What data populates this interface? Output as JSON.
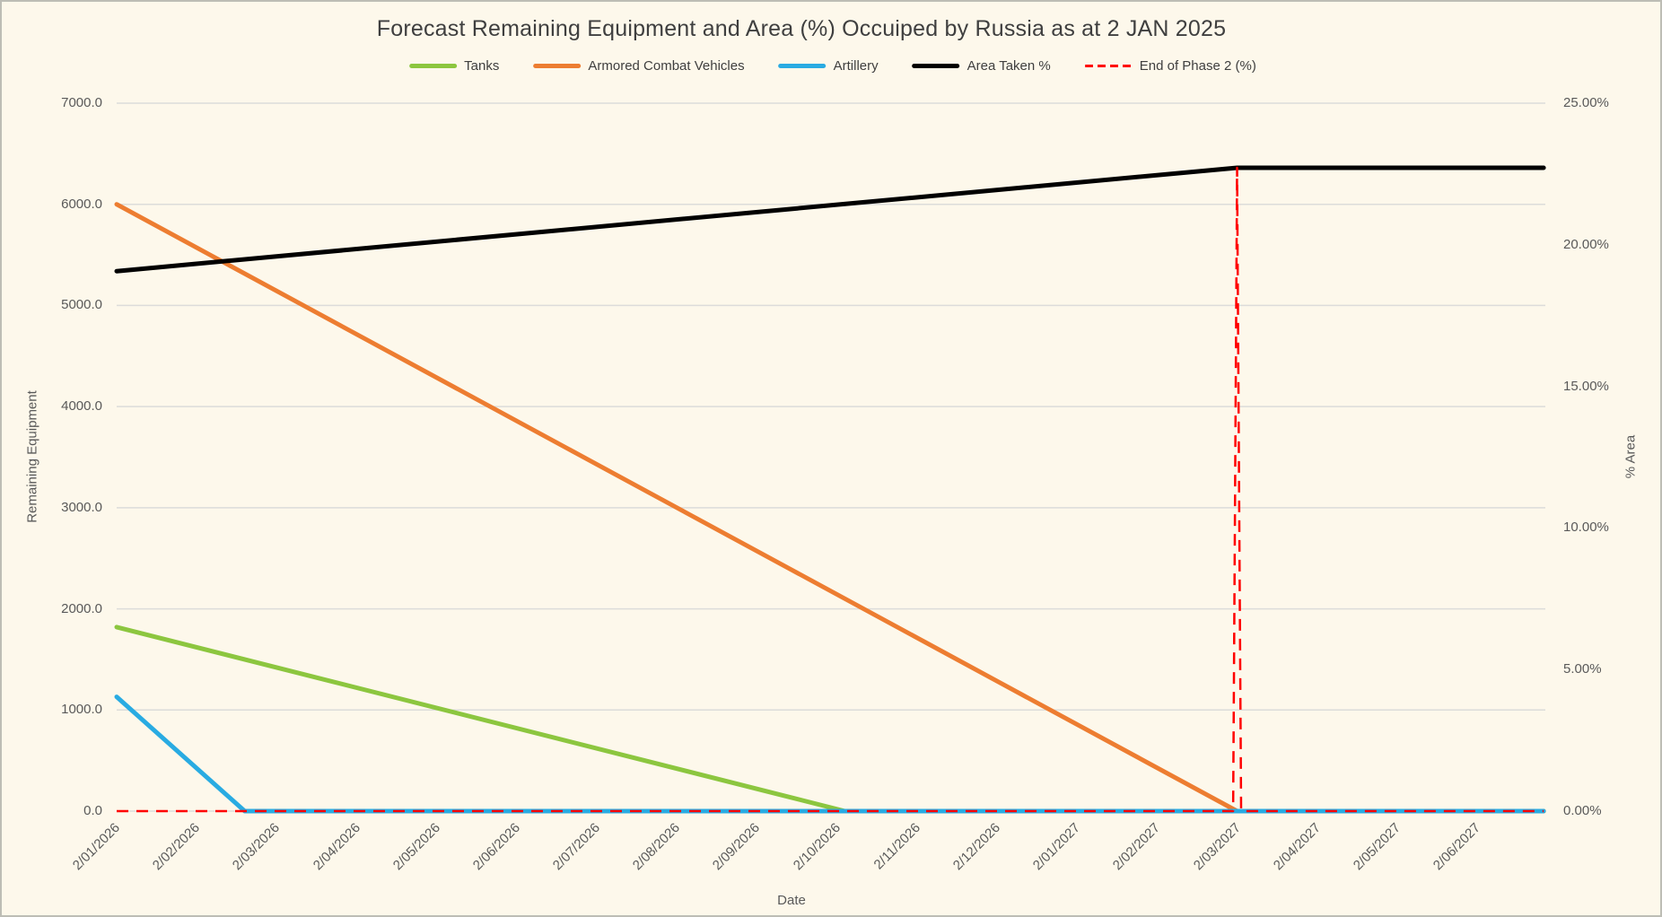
{
  "title": "Forecast Remaining Equipment and Area (%) Occuiped by Russia as at 2 JAN 2025",
  "x_axis_title": "Date",
  "left_axis_title": "Remaining Equipment",
  "right_axis_title": "% Area",
  "colors": {
    "background": "#FDF8EB",
    "gridline": "#DCDCDA",
    "tick_text": "#595959",
    "title_text": "#3F3F3F",
    "tanks": "#8CC63F",
    "armored_combat_vehicles": "#ED7D31",
    "artillery": "#29ABE2",
    "area_taken": "#000000",
    "end_of_phase_2": "#FF0000"
  },
  "legend": {
    "position": "top-center",
    "items": [
      {
        "label": "Tanks",
        "color": "#8CC63F",
        "dashed": false
      },
      {
        "label": "Armored Combat Vehicles",
        "color": "#ED7D31",
        "dashed": false
      },
      {
        "label": "Artillery",
        "color": "#29ABE2",
        "dashed": false
      },
      {
        "label": "Area Taken %",
        "color": "#000000",
        "dashed": false
      },
      {
        "label": "End of Phase 2 (%)",
        "color": "#FF0000",
        "dashed": true
      }
    ]
  },
  "chart_data": {
    "type": "line",
    "title": "Forecast Remaining Equipment and Area (%) Occuiped by Russia as at 2 JAN 2025",
    "xlabel": "Date",
    "grid": true,
    "legend_position": "top",
    "x_axis": {
      "categories": [
        "2/01/2026",
        "2/02/2026",
        "2/03/2026",
        "2/04/2026",
        "2/05/2026",
        "2/06/2026",
        "2/07/2026",
        "2/08/2026",
        "2/09/2026",
        "2/10/2026",
        "2/11/2026",
        "2/12/2026",
        "2/01/2027",
        "2/02/2027",
        "2/03/2027",
        "2/04/2027",
        "2/05/2027",
        "2/06/2027"
      ],
      "plot_extends_past_last_label_by_index": 0.83
    },
    "left_axis": {
      "label": "Remaining Equipment",
      "min": 0,
      "max": 7000,
      "tick_step": 1000,
      "tick_values": [
        0,
        1000,
        2000,
        3000,
        4000,
        5000,
        6000,
        7000
      ],
      "tick_labels": [
        "0.0",
        "1000.0",
        "2000.0",
        "3000.0",
        "4000.0",
        "5000.0",
        "6000.0",
        "7000.0"
      ]
    },
    "right_axis": {
      "label": "% Area",
      "min": 0,
      "max": 25,
      "tick_step": 5,
      "tick_values": [
        0,
        5,
        10,
        15,
        20,
        25
      ],
      "tick_labels": [
        "0.00%",
        "5.00%",
        "10.00%",
        "15.00%",
        "20.00%",
        "25.00%"
      ]
    },
    "series": [
      {
        "name": "Tanks",
        "axis": "left",
        "color": "#8CC63F",
        "style": "solid",
        "width": 5,
        "points": [
          [
            0,
            1820
          ],
          [
            9.1,
            0
          ],
          [
            17.83,
            0
          ]
        ],
        "summary": "Starts at ~1820 on 2/01/2026, declines linearly (~200/month) to 0 by 2/10/2026, then stays at 0."
      },
      {
        "name": "Armored Combat Vehicles",
        "axis": "left",
        "color": "#ED7D31",
        "style": "solid",
        "width": 5,
        "points": [
          [
            0,
            6000
          ],
          [
            14,
            0
          ],
          [
            17.83,
            0
          ]
        ],
        "summary": "Starts at ~6000 on 2/01/2026, declines linearly (~430/month) to 0 at 2/03/2027, then stays at 0."
      },
      {
        "name": "Artillery",
        "axis": "left",
        "color": "#29ABE2",
        "style": "solid",
        "width": 5,
        "points": [
          [
            0,
            1130
          ],
          [
            1.6,
            0
          ],
          [
            17.83,
            0
          ]
        ],
        "summary": "Starts at ~1130 on 2/01/2026, declines steeply to 0 between 2/02/2026 and 2/03/2026, then stays at 0."
      },
      {
        "name": "Area Taken %",
        "axis": "right",
        "color": "#000000",
        "style": "solid",
        "width": 5,
        "points": [
          [
            0,
            19.07
          ],
          [
            14,
            22.72
          ],
          [
            17.83,
            22.72
          ]
        ],
        "summary": "Rises linearly from ~19.1% on 2/01/2026 to ~22.7% at 2/03/2027, then stays flat at ~22.7%."
      },
      {
        "name": "End of Phase 2 (%)",
        "axis": "right",
        "color": "#FF0000",
        "style": "dashed",
        "width": 2.5,
        "points": [
          [
            0,
            0
          ],
          [
            13.95,
            0
          ],
          [
            14,
            22.72
          ],
          [
            14.05,
            0
          ],
          [
            17.83,
            0
          ]
        ],
        "summary": "Red dashed marker: 0% across all dates with a vertical spike to ~22.7% at 2/03/2027 (end of phase 2)."
      }
    ]
  }
}
